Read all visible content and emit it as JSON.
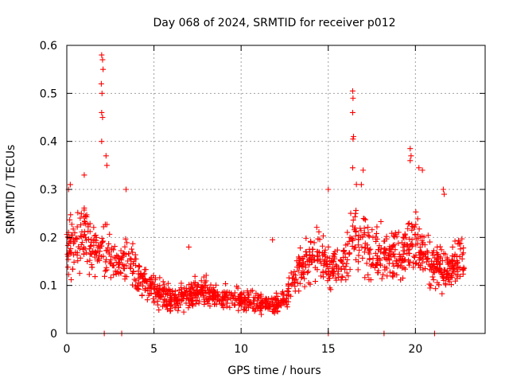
{
  "chart_data": {
    "type": "scatter",
    "title": "Day 068 of 2024, SRMTID for receiver p012",
    "xlabel": "GPS time / hours",
    "ylabel": "SRMTID / TECUs",
    "xlim": [
      0,
      24
    ],
    "ylim": [
      0,
      0.6
    ],
    "grid": true,
    "marker": "+",
    "color": "#ff0000",
    "x_ticks": [
      0,
      5,
      10,
      15,
      20
    ],
    "x_tick_labels": [
      "0",
      "5",
      "10",
      "15",
      "20"
    ],
    "y_ticks": [
      0,
      0.1,
      0.2,
      0.3,
      0.4,
      0.5,
      0.6
    ],
    "y_tick_labels": [
      "0",
      "0.1",
      "0.2",
      "0.3",
      "0.4",
      "0.5",
      "0.6"
    ],
    "series": [
      {
        "name": "SRMTID",
        "profile_hours": [
          0,
          0.5,
          1,
          1.5,
          2,
          2.5,
          3,
          3.5,
          4,
          4.5,
          5,
          5.5,
          6,
          6.5,
          7,
          7.5,
          8,
          8.5,
          9,
          9.5,
          10,
          10.5,
          11,
          11.5,
          12,
          12.5,
          13,
          13.5,
          14,
          14.5,
          15,
          15.5,
          16,
          16.5,
          17,
          17.5,
          18,
          18.5,
          19,
          19.5,
          20,
          20.5,
          21,
          21.5,
          22,
          22.5,
          22.8
        ],
        "profile_values": [
          0.19,
          0.17,
          0.21,
          0.18,
          0.17,
          0.17,
          0.14,
          0.15,
          0.12,
          0.1,
          0.09,
          0.08,
          0.075,
          0.07,
          0.08,
          0.09,
          0.085,
          0.08,
          0.075,
          0.07,
          0.07,
          0.065,
          0.065,
          0.06,
          0.06,
          0.07,
          0.11,
          0.14,
          0.16,
          0.17,
          0.13,
          0.14,
          0.15,
          0.22,
          0.2,
          0.17,
          0.17,
          0.16,
          0.17,
          0.18,
          0.2,
          0.17,
          0.14,
          0.14,
          0.13,
          0.15,
          0.16
        ],
        "spikes": [
          {
            "x": 2.0,
            "y": 0.58
          },
          {
            "x": 2.05,
            "y": 0.57
          },
          {
            "x": 2.08,
            "y": 0.55
          },
          {
            "x": 1.98,
            "y": 0.52
          },
          {
            "x": 2.02,
            "y": 0.5
          },
          {
            "x": 2.0,
            "y": 0.46
          },
          {
            "x": 2.05,
            "y": 0.45
          },
          {
            "x": 2.0,
            "y": 0.4
          },
          {
            "x": 2.3,
            "y": 0.35
          },
          {
            "x": 2.25,
            "y": 0.37
          },
          {
            "x": 16.4,
            "y": 0.505
          },
          {
            "x": 16.42,
            "y": 0.49
          },
          {
            "x": 16.4,
            "y": 0.46
          },
          {
            "x": 16.45,
            "y": 0.41
          },
          {
            "x": 16.42,
            "y": 0.405
          },
          {
            "x": 16.4,
            "y": 0.345
          },
          {
            "x": 19.7,
            "y": 0.385
          },
          {
            "x": 19.75,
            "y": 0.37
          },
          {
            "x": 19.7,
            "y": 0.36
          },
          {
            "x": 20.2,
            "y": 0.345
          },
          {
            "x": 20.4,
            "y": 0.34
          },
          {
            "x": 21.6,
            "y": 0.3
          },
          {
            "x": 21.65,
            "y": 0.29
          },
          {
            "x": 3.4,
            "y": 0.3
          },
          {
            "x": 15.0,
            "y": 0.3
          },
          {
            "x": 11.8,
            "y": 0.195
          },
          {
            "x": 7.0,
            "y": 0.18
          },
          {
            "x": 0.2,
            "y": 0.31
          },
          {
            "x": 0.1,
            "y": 0.3
          },
          {
            "x": 1.0,
            "y": 0.33
          },
          {
            "x": 17.0,
            "y": 0.34
          },
          {
            "x": 16.9,
            "y": 0.31
          }
        ],
        "zeros": [
          2.15,
          3.15,
          15.0,
          18.2,
          21.1
        ]
      }
    ]
  }
}
